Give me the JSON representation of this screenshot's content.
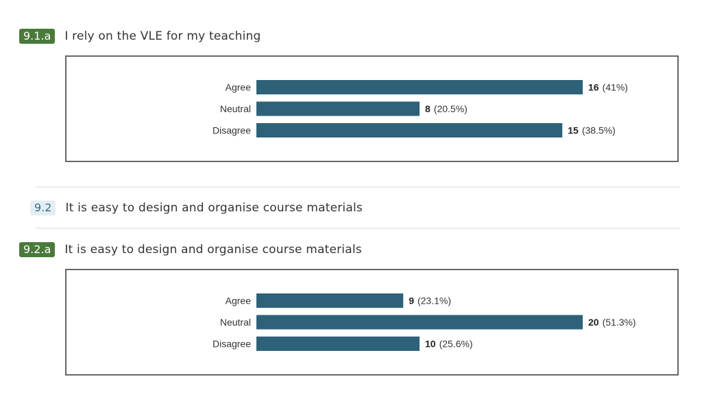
{
  "q1": {
    "badge": "9.1.a",
    "title": "I rely on the VLE for my teaching"
  },
  "q2": {
    "badge": "9.2",
    "title": "It is easy to design and organise course materials"
  },
  "q3": {
    "badge": "9.2.a",
    "title": "It is easy to design and organise course materials"
  },
  "colors": {
    "bar": "#2e6278",
    "badge_sub": "#4a7a3a",
    "badge_main_bg": "#e3eef4"
  },
  "chart_data": [
    {
      "type": "bar",
      "orientation": "horizontal",
      "categories": [
        "Agree",
        "Neutral",
        "Disagree"
      ],
      "values": [
        16,
        8,
        15
      ],
      "labels": [
        "(41%)",
        "(20.5%)",
        "(38.5%)"
      ],
      "xlim": [
        0,
        16
      ]
    },
    {
      "type": "bar",
      "orientation": "horizontal",
      "categories": [
        "Agree",
        "Neutral",
        "Disagree"
      ],
      "values": [
        9,
        20,
        10
      ],
      "labels": [
        "(23.1%)",
        "(51.3%)",
        "(25.6%)"
      ],
      "xlim": [
        0,
        20
      ]
    }
  ]
}
